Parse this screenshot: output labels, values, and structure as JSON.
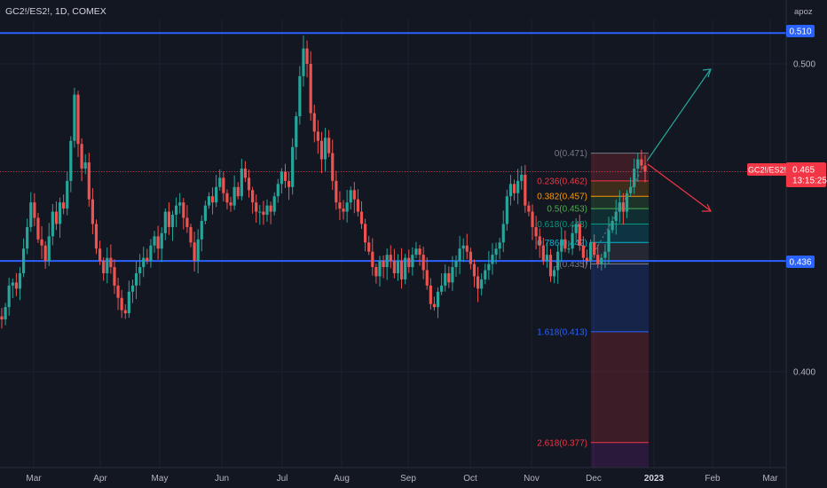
{
  "header": {
    "symbol_title": "GC2!/ES2!, 1D, COMEX",
    "corner_label": "apoz"
  },
  "colors": {
    "background": "#131722",
    "up": "#26a69a",
    "down": "#ef5350",
    "hline": "#2962ff",
    "price_red": "#f23645",
    "grid": "#1e222d"
  },
  "chart_data": {
    "type": "candlestick",
    "ylim": [
      0.373,
      0.524
    ],
    "x_tick_labels": [
      "Mar",
      "Apr",
      "May",
      "Jun",
      "Jul",
      "Aug",
      "Sep",
      "Oct",
      "Nov",
      "Dec",
      "2023",
      "Feb",
      "Mar"
    ],
    "y_tick_labels": [
      "0.400",
      "0.500"
    ],
    "y_tick_values": [
      0.4,
      0.5
    ],
    "horizontal_levels": [
      {
        "value": 0.51,
        "label": "0.510"
      },
      {
        "value": 0.436,
        "label": "0.436"
      }
    ],
    "last_price": {
      "value": 0.465,
      "symbol": "GC2!/ES2!",
      "label": "0.465",
      "countdown": "13:15:25"
    },
    "fib_levels": [
      {
        "ratio_label": "0(0.471)",
        "value": 0.471,
        "color": "#787b86"
      },
      {
        "ratio_label": "0.236(0.462)",
        "value": 0.462,
        "color": "#f23645"
      },
      {
        "ratio_label": "0.382(0.457)",
        "value": 0.457,
        "color": "#ff9800"
      },
      {
        "ratio_label": "0.5(0.453)",
        "value": 0.453,
        "color": "#4caf50"
      },
      {
        "ratio_label": "0.618(0.448)",
        "value": 0.448,
        "color": "#089981"
      },
      {
        "ratio_label": "0.786(0.442)",
        "value": 0.442,
        "color": "#00bcd4"
      },
      {
        "ratio_label": "1(0.435)",
        "value": 0.435,
        "color": "#787b86"
      },
      {
        "ratio_label": "1.618(0.413)",
        "value": 0.413,
        "color": "#2962ff"
      },
      {
        "ratio_label": "2.618(0.377)",
        "value": 0.377,
        "color": "#f23645"
      }
    ],
    "closes": [
      0.417,
      0.421,
      0.428,
      0.429,
      0.427,
      0.432,
      0.44,
      0.447,
      0.455,
      0.45,
      0.443,
      0.441,
      0.436,
      0.444,
      0.452,
      0.448,
      0.455,
      0.453,
      0.462,
      0.475,
      0.49,
      0.474,
      0.466,
      0.468,
      0.456,
      0.448,
      0.44,
      0.436,
      0.432,
      0.437,
      0.434,
      0.428,
      0.424,
      0.42,
      0.419,
      0.426,
      0.428,
      0.432,
      0.434,
      0.437,
      0.436,
      0.441,
      0.444,
      0.44,
      0.445,
      0.452,
      0.447,
      0.451,
      0.454,
      0.455,
      0.45,
      0.447,
      0.442,
      0.436,
      0.443,
      0.449,
      0.454,
      0.457,
      0.455,
      0.46,
      0.463,
      0.458,
      0.455,
      0.454,
      0.46,
      0.457,
      0.466,
      0.463,
      0.459,
      0.455,
      0.452,
      0.452,
      0.451,
      0.454,
      0.452,
      0.457,
      0.461,
      0.465,
      0.462,
      0.46,
      0.473,
      0.483,
      0.496,
      0.505,
      0.5,
      0.484,
      0.478,
      0.475,
      0.469,
      0.476,
      0.471,
      0.462,
      0.455,
      0.453,
      0.452,
      0.455,
      0.459,
      0.456,
      0.452,
      0.448,
      0.442,
      0.439,
      0.434,
      0.431,
      0.436,
      0.434,
      0.438,
      0.436,
      0.432,
      0.436,
      0.43,
      0.437,
      0.434,
      0.438,
      0.44,
      0.438,
      0.433,
      0.428,
      0.422,
      0.421,
      0.426,
      0.428,
      0.432,
      0.429,
      0.434,
      0.436,
      0.44,
      0.441,
      0.439,
      0.435,
      0.431,
      0.427,
      0.43,
      0.433,
      0.435,
      0.438,
      0.44,
      0.442,
      0.448,
      0.457,
      0.461,
      0.458,
      0.462,
      0.464,
      0.454,
      0.452,
      0.447,
      0.444,
      0.441,
      0.436,
      0.438,
      0.431,
      0.433,
      0.439,
      0.443,
      0.44,
      0.44,
      0.445,
      0.448,
      0.441,
      0.437,
      0.436,
      0.442,
      0.438,
      0.435,
      0.437,
      0.439,
      0.446,
      0.449,
      0.452,
      0.455,
      0.452,
      0.458,
      0.46,
      0.466,
      0.469,
      0.467,
      0.465
    ]
  }
}
